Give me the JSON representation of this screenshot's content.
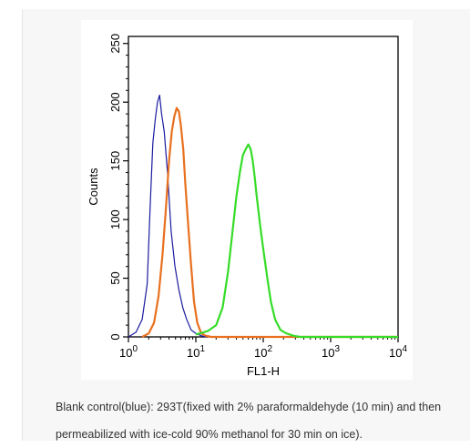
{
  "chart_data": {
    "type": "line",
    "xscale": "log",
    "xlabel": "FL1-H",
    "ylabel": "Counts",
    "xlim": [
      1,
      10000
    ],
    "ylim": [
      0,
      256
    ],
    "x_tick_labels": [
      {
        "base": "10",
        "exp": "0"
      },
      {
        "base": "10",
        "exp": "1"
      },
      {
        "base": "10",
        "exp": "2"
      },
      {
        "base": "10",
        "exp": "3"
      },
      {
        "base": "10",
        "exp": "4"
      }
    ],
    "y_ticks": [
      0,
      50,
      100,
      150,
      200,
      250
    ],
    "series": [
      {
        "color": "#1a1aa0",
        "stroke_width": 1.2,
        "x": [
          1,
          1.3,
          1.6,
          1.9,
          2.1,
          2.3,
          2.5,
          2.7,
          2.9,
          3.1,
          3.4,
          3.8,
          4.3,
          4.9,
          5.6,
          6.4,
          7.3,
          8.5,
          10,
          12,
          14
        ],
        "y": [
          0,
          4,
          15,
          45,
          110,
          165,
          185,
          200,
          206,
          190,
          175,
          140,
          90,
          60,
          40,
          25,
          15,
          6,
          3,
          1,
          0
        ]
      },
      {
        "color": "#e8701e",
        "stroke_width": 2.2,
        "x": [
          1.6,
          2.0,
          2.4,
          2.8,
          3.2,
          3.6,
          4.0,
          4.4,
          4.8,
          5.2,
          5.6,
          6.0,
          6.5,
          7.0,
          7.6,
          8.4,
          9.4,
          10.5,
          12,
          14,
          17,
          20,
          40,
          100,
          300,
          1000,
          3000,
          10000
        ],
        "y": [
          0,
          3,
          12,
          35,
          70,
          110,
          150,
          175,
          188,
          195,
          192,
          180,
          160,
          130,
          100,
          65,
          30,
          12,
          3,
          1,
          0,
          0,
          0,
          0,
          0,
          0,
          0,
          0
        ]
      },
      {
        "color": "#36dc28",
        "stroke_width": 2.2,
        "x": [
          10,
          15,
          20,
          25,
          30,
          35,
          40,
          45,
          50,
          55,
          60,
          65,
          70,
          75,
          80,
          90,
          100,
          115,
          130,
          150,
          180,
          220,
          280,
          350,
          500,
          1000,
          3000,
          10000
        ],
        "y": [
          2,
          5,
          10,
          25,
          55,
          90,
          120,
          140,
          155,
          160,
          164,
          160,
          150,
          135,
          120,
          95,
          75,
          50,
          30,
          15,
          6,
          3,
          1,
          0,
          0,
          0,
          0,
          0
        ]
      }
    ]
  },
  "caption": {
    "line1": "Blank control(blue): 293T(fixed with 2% paraformaldehyde (10 min) and then",
    "line2": "permeabilized with ice-cold 90% methanol for 30 min on ice)."
  }
}
